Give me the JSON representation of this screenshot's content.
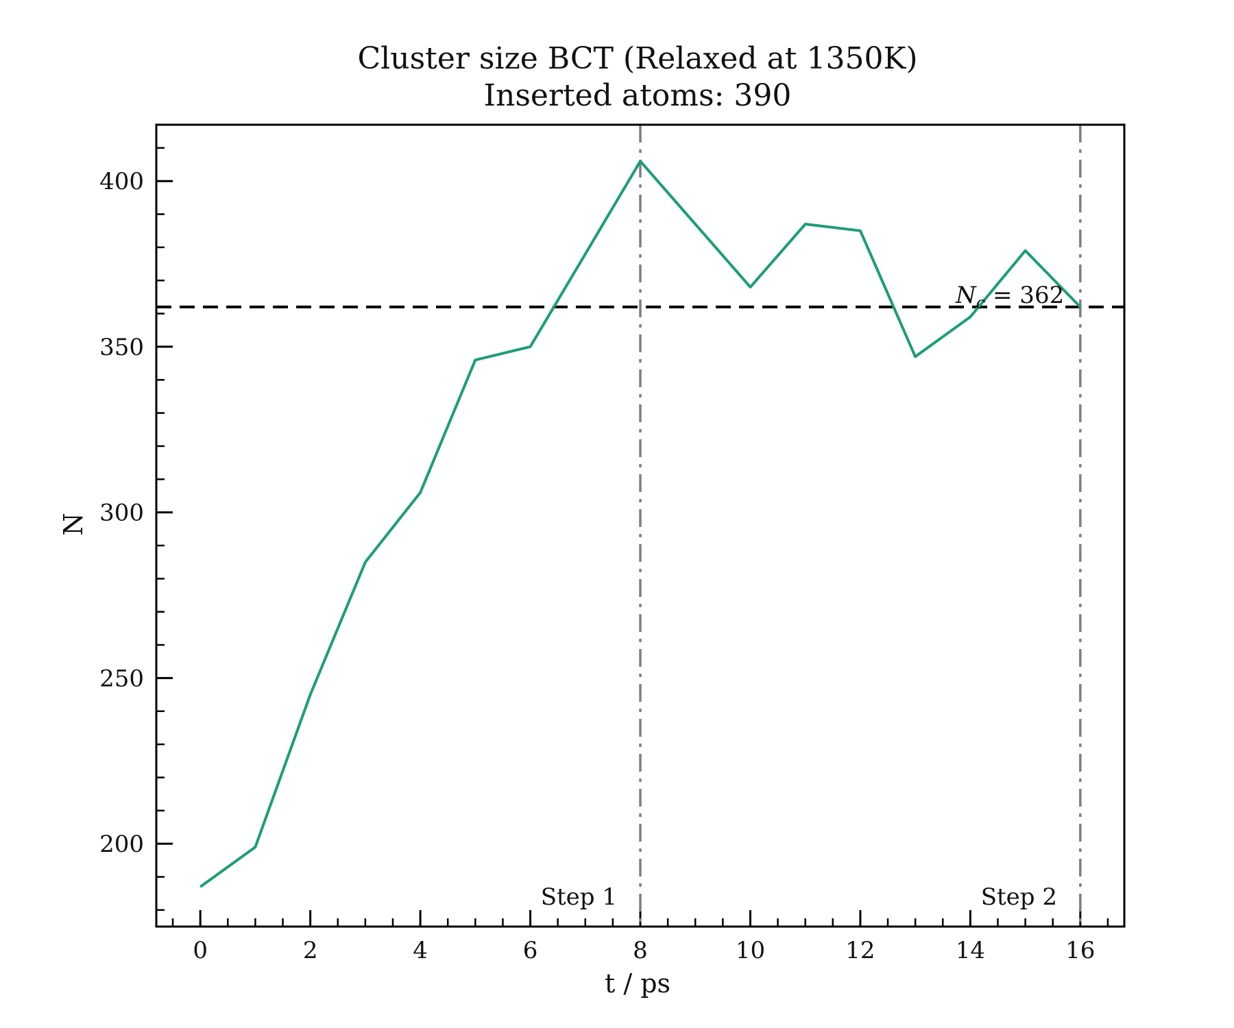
{
  "chart_data": {
    "type": "line",
    "title": "Cluster size BCT (Relaxed at 1350K)",
    "subtitle": "Inserted atoms: 390",
    "xlabel": "t / ps",
    "ylabel": "N",
    "xlim": [
      -0.8,
      16.8
    ],
    "ylim": [
      175,
      417
    ],
    "x_major_ticks": [
      0,
      2,
      4,
      6,
      8,
      10,
      12,
      14,
      16
    ],
    "x_tick_labels": [
      "0",
      "2",
      "4",
      "6",
      "8",
      "10",
      "12",
      "14",
      "16"
    ],
    "y_major_ticks": [
      200,
      250,
      300,
      350,
      400
    ],
    "y_tick_labels": [
      "200",
      "250",
      "300",
      "350",
      "400"
    ],
    "series": [
      {
        "color": "#1b9e77",
        "x": [
          0,
          1,
          2,
          3,
          4,
          5,
          6,
          7,
          8,
          9,
          10,
          11,
          12,
          13,
          14,
          15,
          16
        ],
        "y": [
          187,
          199,
          245,
          285,
          306,
          346,
          350,
          378,
          406,
          387,
          368,
          387,
          385,
          347,
          359,
          379,
          362
        ]
      }
    ],
    "reference_lines": [
      {
        "orientation": "horizontal",
        "value": 362,
        "style": "dashed",
        "color": "#000000",
        "label": "N_c = 362"
      },
      {
        "orientation": "vertical",
        "value": 8,
        "style": "dashdot",
        "color": "#7f7f7f",
        "label": "Step 1"
      },
      {
        "orientation": "vertical",
        "value": 16,
        "style": "dashdot",
        "color": "#7f7f7f",
        "label": "Step 2"
      }
    ],
    "annotations": {
      "nc_symbol": "N",
      "nc_subscript": "c",
      "nc_value_text": " = 362",
      "step1": "Step 1",
      "step2": "Step 2"
    },
    "grid": false,
    "legend": "none"
  }
}
